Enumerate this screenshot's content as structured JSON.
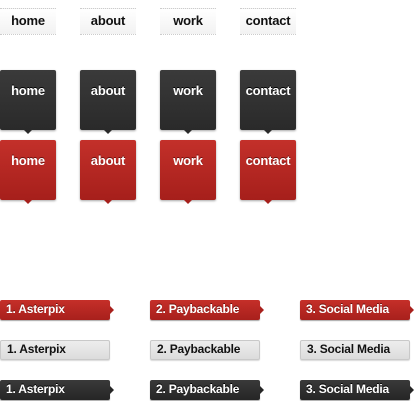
{
  "nav_flat": [
    "home",
    "about",
    "work",
    "contact"
  ],
  "nav_dark": [
    "home",
    "about",
    "work",
    "contact"
  ],
  "nav_red": [
    "home",
    "about",
    "work",
    "contact"
  ],
  "steps_red": [
    "1. Asterpix",
    "2. Paybackable",
    "3. Social Media"
  ],
  "steps_grey": [
    "1. Asterpix",
    "2. Paybackable",
    "3. Social Media"
  ],
  "steps_dark": [
    "1. Asterpix",
    "2. Paybackable",
    "3. Social Media"
  ],
  "colors": {
    "red": "#b3251f",
    "dark": "#303030",
    "grey": "#e4e4e4",
    "text_dark": "#111111",
    "text_light": "#ffffff"
  }
}
